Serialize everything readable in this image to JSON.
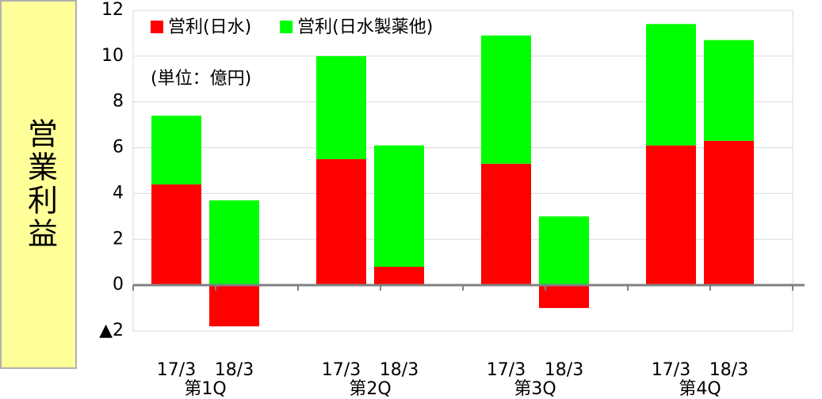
{
  "chart_data": {
    "type": "stacked_bar",
    "ylabel": "営業利益",
    "annotation": "(単位：億円)",
    "categories": [
      "17/3",
      "18/3",
      "17/3",
      "18/3",
      "17/3",
      "18/3",
      "17/3",
      "18/3"
    ],
    "groups": [
      "第1Q",
      "第2Q",
      "第3Q",
      "第4Q"
    ],
    "series": [
      {
        "name": "営利(日水)",
        "color": "#ff0000",
        "values": [
          4.4,
          -1.8,
          5.5,
          0.8,
          5.3,
          -1.0,
          6.1,
          6.3
        ]
      },
      {
        "name": "営利(日水製薬他)",
        "color": "#00ff00",
        "values": [
          3.0,
          3.7,
          4.5,
          5.3,
          5.6,
          3.0,
          5.3,
          4.4
        ]
      }
    ],
    "ylim": [
      -2,
      12
    ],
    "yticks": [
      {
        "value": -2,
        "label": "▲2"
      },
      0,
      2,
      4,
      6,
      8,
      10,
      12
    ],
    "grid": true
  }
}
